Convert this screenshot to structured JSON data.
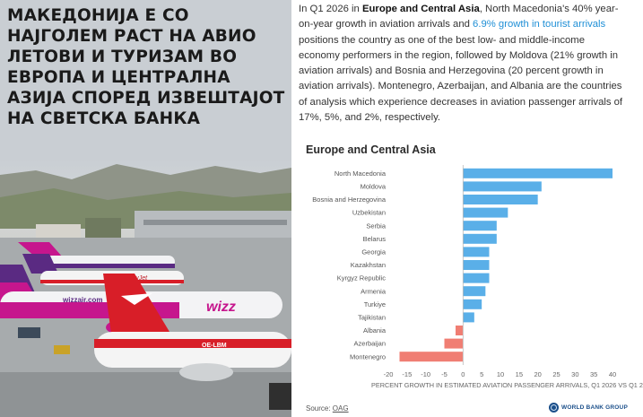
{
  "headline": "МАКЕДОНИЈА Е СО НАЈГОЛЕМ РАСТ НА АВИО ЛЕТОВИ И ТУРИЗАМ ВО ЕВРОПА И ЦЕНТРАЛНА АЗИЈА СПОРЕД ИЗВЕШТАЈОТ НА СВЕТСКА БАНКА",
  "photo": {
    "aircraft_texts": [
      "wizzair.com",
      "wizz",
      "OE-LBM"
    ],
    "colors": {
      "wizz_pink": "#c6168d",
      "wizz_purple": "#5a2a82",
      "austrian_red": "#d81e28"
    }
  },
  "paragraph": {
    "t1": "In Q1 2026 in ",
    "b1": "Europe and Central Asia",
    "t2": ", North Macedonia's 40% year-on-year growth in aviation arrivals and ",
    "link1": "6.9% growth in tourist arrivals",
    "t3": " positions the country as one of the best low- and middle-income economy performers in the region, followed by Moldova (21% growth in aviation arrivals) and Bosnia and Herzegovina (20 percent growth in aviation arrivals). Montenegro, Azerbaijan, and Albania are the countries of analysis which experience decreases in aviation passenger arrivals of 17%, 5%, and 2%, respectively."
  },
  "chart_data": {
    "type": "bar",
    "orientation": "horizontal",
    "title": "Europe and Central Asia",
    "xlabel": "PERCENT GROWTH IN ESTIMATED AVIATION PASSENGER ARRIVALS, Q1 2026 VS Q1 2",
    "categories": [
      "North Macedonia",
      "Moldova",
      "Bosnia and Herzegovina",
      "Uzbekistan",
      "Serbia",
      "Belarus",
      "Georgia",
      "Kazakhstan",
      "Kyrgyz Republic",
      "Armenia",
      "Turkiye",
      "Tajikistan",
      "Albania",
      "Azerbaijan",
      "Montenegro"
    ],
    "values": [
      40,
      21,
      20,
      12,
      9,
      9,
      7,
      7,
      7,
      6,
      5,
      3,
      -2,
      -5,
      -17
    ],
    "xlim": [
      -20,
      40
    ],
    "xticks": [
      "-20",
      "-15",
      "-10",
      "-5",
      "0",
      "5",
      "10",
      "15",
      "20",
      "25",
      "30",
      "35",
      "40"
    ],
    "colors": {
      "positive": "#5aafe8",
      "negative": "#f07e73"
    },
    "grid": false
  },
  "source": {
    "label": "Source: ",
    "link": "OAG"
  },
  "logo": {
    "text": "WORLD BANK GROUP"
  }
}
